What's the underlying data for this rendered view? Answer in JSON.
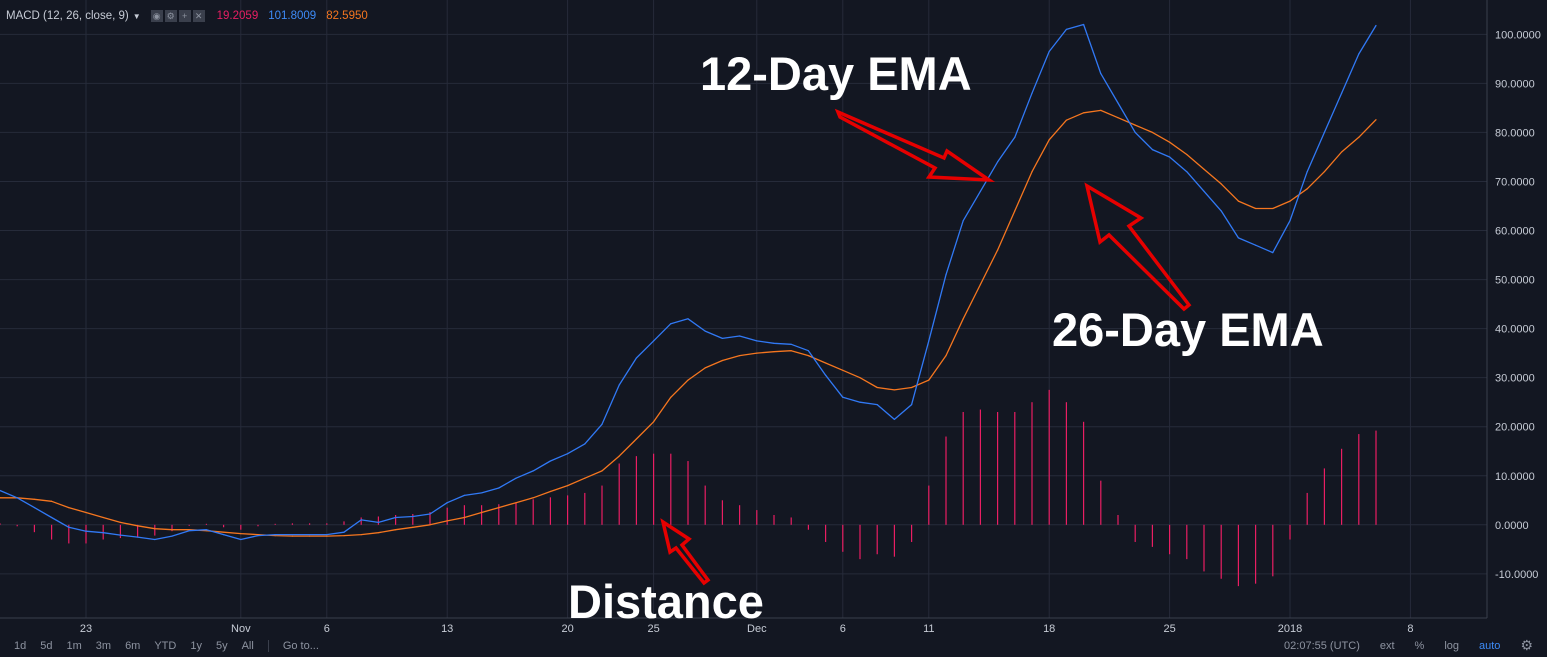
{
  "indicator": {
    "title": "MACD (12, 26, close, 9)",
    "value_histogram": "19.2059",
    "value_macd": "101.8009",
    "value_signal": "82.5950"
  },
  "annotations": {
    "ema12": "12-Day EMA",
    "ema26": "26-Day EMA",
    "distance": "Distance"
  },
  "bottom_bar": {
    "timeframes": [
      "1d",
      "5d",
      "1m",
      "3m",
      "6m",
      "YTD",
      "1y",
      "5y",
      "All"
    ],
    "goto": "Go to...",
    "time": "02:07:55 (UTC)",
    "ext": "ext",
    "percent": "%",
    "log": "log",
    "auto": "auto"
  },
  "colors": {
    "background": "#131722",
    "grid": "#262b3a",
    "macd_line": "#3179f5",
    "signal_line": "#f5761f",
    "histogram": "#e91e63",
    "arrow": "#e60000"
  },
  "chart_data": {
    "type": "line",
    "ylim": [
      -19,
      107
    ],
    "yticks": [
      100,
      90,
      80,
      70,
      60,
      50,
      40,
      30,
      20,
      10,
      0,
      -10
    ],
    "ytick_labels": [
      "100.0000",
      "90.0000",
      "80.0000",
      "70.0000",
      "60.0000",
      "50.0000",
      "40.0000",
      "30.0000",
      "20.0000",
      "10.0000",
      "0.0000",
      "-10.0000"
    ],
    "xticks": [
      {
        "label": "23",
        "i": 5
      },
      {
        "label": "Nov",
        "i": 14
      },
      {
        "label": "6",
        "i": 19
      },
      {
        "label": "13",
        "i": 26
      },
      {
        "label": "20",
        "i": 33
      },
      {
        "label": "25",
        "i": 38
      },
      {
        "label": "Dec",
        "i": 44
      },
      {
        "label": "6",
        "i": 49
      },
      {
        "label": "11",
        "i": 54
      },
      {
        "label": "18",
        "i": 61
      },
      {
        "label": "25",
        "i": 68
      },
      {
        "label": "2018",
        "i": 75
      },
      {
        "label": "8",
        "i": 82
      }
    ],
    "series": [
      {
        "values": [
          7,
          5.5,
          3.5,
          1.5,
          -0.5,
          -1.3,
          -1.6,
          -2.1,
          -2.5,
          -3.0,
          -2.3,
          -1.2,
          -1.0,
          -2.0,
          -3.0,
          -2.2,
          -2.0,
          -2.0,
          -2.0,
          -2.0,
          -1.5,
          1.0,
          0.5,
          1.5,
          1.7,
          2.2,
          4.5,
          6.0,
          6.5,
          7.5,
          9.5,
          11.0,
          13.0,
          14.5,
          16.5,
          20.5,
          28.5,
          34.0,
          37.5,
          41.0,
          42.0,
          39.5,
          38.0,
          38.5,
          37.5,
          37.0,
          36.8,
          35.5,
          30.5,
          26.0,
          25.0,
          24.5,
          21.5,
          24.5,
          37.5,
          51.0,
          62.0,
          68.0,
          74.0,
          79.0,
          88.0,
          96.5,
          101.0,
          102.0,
          92.0,
          86.0,
          80.0,
          76.5,
          75.0,
          72.0,
          68.0,
          64.0,
          58.5,
          57.0,
          55.5,
          62.0,
          72.0,
          80.0,
          88.0,
          96.0,
          101.8009
        ]
      },
      {
        "values": [
          5.5,
          5.5,
          5.2,
          4.8,
          3.5,
          2.5,
          1.5,
          0.5,
          -0.2,
          -0.8,
          -1.0,
          -1.0,
          -1.2,
          -1.5,
          -1.8,
          -2.0,
          -2.2,
          -2.3,
          -2.3,
          -2.3,
          -2.2,
          -2.0,
          -1.6,
          -1.0,
          -0.5,
          0.0,
          0.8,
          1.5,
          2.5,
          3.5,
          4.5,
          5.5,
          6.8,
          8.0,
          9.5,
          11.0,
          14.0,
          17.5,
          21.0,
          26.0,
          29.5,
          32.0,
          33.5,
          34.5,
          35.0,
          35.3,
          35.5,
          34.5,
          33.0,
          31.5,
          30.0,
          28.0,
          27.5,
          28.0,
          29.5,
          34.5,
          42.0,
          49.0,
          56.0,
          64.0,
          72.0,
          78.5,
          82.5,
          84.0,
          84.5,
          83.0,
          81.5,
          80.0,
          78.0,
          75.5,
          72.5,
          69.5,
          66.0,
          64.5,
          64.5,
          66.0,
          68.5,
          72.0,
          76.0,
          79.0,
          82.595
        ]
      },
      {
        "values": [
          0.3,
          -0.3,
          -1.5,
          -3.0,
          -3.8,
          -3.8,
          -3.0,
          -2.7,
          -2.5,
          -2.2,
          -1.3,
          -0.2,
          0.2,
          -0.5,
          -1.0,
          -0.3,
          0.2,
          0.3,
          0.3,
          0.3,
          0.7,
          1.5,
          1.7,
          2.0,
          2.2,
          2.6,
          3.5,
          4.0,
          4.0,
          4.2,
          4.5,
          5.2,
          5.6,
          6.0,
          6.5,
          8.0,
          12.5,
          14.0,
          14.5,
          14.5,
          13.0,
          8.0,
          5.0,
          4.0,
          3.0,
          2.0,
          1.5,
          -1.0,
          -3.5,
          -5.5,
          -7.0,
          -6.0,
          -6.5,
          -3.5,
          8.0,
          18.0,
          23.0,
          23.5,
          23.0,
          23.0,
          25.0,
          27.5,
          25.0,
          21.0,
          9.0,
          2.0,
          -3.5,
          -4.5,
          -6.0,
          -7.0,
          -9.5,
          -11.0,
          -12.5,
          -12.0,
          -10.5,
          -3.0,
          6.5,
          11.5,
          15.5,
          18.5,
          19.2059
        ]
      }
    ]
  }
}
